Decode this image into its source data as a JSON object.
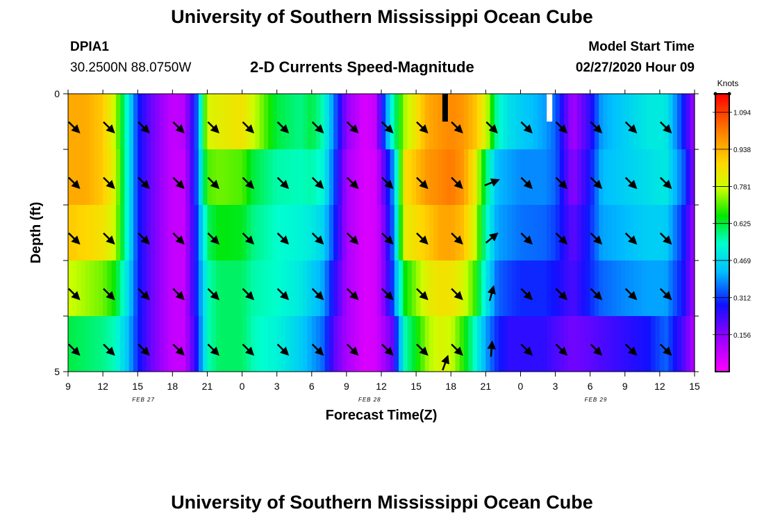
{
  "header": {
    "title": "University of Southern Mississippi Ocean Cube",
    "station": "DPIA1",
    "coords": "30.2500N 88.0750W",
    "subtitle": "2-D Currents Speed-Magnitude",
    "model_start_label": "Model Start Time",
    "model_start_value": "02/27/2020 Hour 09"
  },
  "footer": {
    "title": "University of Southern Mississippi Ocean Cube"
  },
  "chart_data": {
    "type": "heatmap",
    "xlabel": "Forecast Time(Z)",
    "ylabel": "Depth (ft)",
    "ylim": [
      0,
      5
    ],
    "y_ticks": [
      "0",
      "5"
    ],
    "x_ticks": [
      "9",
      "12",
      "15",
      "18",
      "21",
      "0",
      "3",
      "6",
      "9",
      "12",
      "15",
      "18",
      "21",
      "0",
      "3",
      "6",
      "9",
      "12",
      "15"
    ],
    "x_range_hours": [
      0,
      54
    ],
    "date_labels": [
      {
        "label": "FEB 27",
        "hour": 6.5
      },
      {
        "label": "FEB 28",
        "hour": 26
      },
      {
        "label": "FEB 29",
        "hour": 45.5
      }
    ],
    "colorbar": {
      "unit": "Knots",
      "min": 0.0,
      "max": 1.172,
      "ticks": [
        "1.094",
        "0.938",
        "0.781",
        "0.625",
        "0.469",
        "0.312",
        "0.156"
      ],
      "tick_values": [
        1.094,
        0.938,
        0.781,
        0.625,
        0.469,
        0.312,
        0.156
      ]
    },
    "depth_layers": 5,
    "profiles": [
      {
        "h": 0,
        "v": [
          0.95,
          0.95,
          0.9,
          0.78,
          0.62
        ]
      },
      {
        "h": 1.5,
        "v": [
          0.95,
          0.95,
          0.88,
          0.75,
          0.6
        ]
      },
      {
        "h": 3,
        "v": [
          0.9,
          0.9,
          0.85,
          0.72,
          0.58
        ]
      },
      {
        "h": 4,
        "v": [
          0.78,
          0.8,
          0.78,
          0.66,
          0.55
        ]
      },
      {
        "h": 5,
        "v": [
          0.55,
          0.55,
          0.55,
          0.5,
          0.45
        ]
      },
      {
        "h": 6,
        "v": [
          0.3,
          0.3,
          0.3,
          0.3,
          0.3
        ]
      },
      {
        "h": 7,
        "v": [
          0.2,
          0.2,
          0.2,
          0.2,
          0.2
        ]
      },
      {
        "h": 9,
        "v": [
          0.08,
          0.08,
          0.08,
          0.08,
          0.08
        ]
      },
      {
        "h": 10,
        "v": [
          0.1,
          0.08,
          0.08,
          0.08,
          0.08
        ]
      },
      {
        "h": 11,
        "v": [
          0.3,
          0.3,
          0.28,
          0.28,
          0.25
        ]
      },
      {
        "h": 12,
        "v": [
          0.8,
          0.7,
          0.6,
          0.55,
          0.55
        ]
      },
      {
        "h": 13,
        "v": [
          0.82,
          0.72,
          0.65,
          0.6,
          0.6
        ]
      },
      {
        "h": 15,
        "v": [
          0.85,
          0.7,
          0.64,
          0.6,
          0.6
        ]
      },
      {
        "h": 16,
        "v": [
          0.78,
          0.62,
          0.58,
          0.56,
          0.55
        ]
      },
      {
        "h": 18,
        "v": [
          0.62,
          0.56,
          0.54,
          0.54,
          0.52
        ]
      },
      {
        "h": 20,
        "v": [
          0.58,
          0.55,
          0.52,
          0.5,
          0.45
        ]
      },
      {
        "h": 21,
        "v": [
          0.62,
          0.56,
          0.5,
          0.45,
          0.4
        ]
      },
      {
        "h": 22,
        "v": [
          0.55,
          0.52,
          0.46,
          0.4,
          0.35
        ]
      },
      {
        "h": 23,
        "v": [
          0.35,
          0.32,
          0.3,
          0.25,
          0.2
        ]
      },
      {
        "h": 24,
        "v": [
          0.15,
          0.12,
          0.12,
          0.12,
          0.12
        ]
      },
      {
        "h": 25.5,
        "v": [
          0.05,
          0.05,
          0.05,
          0.05,
          0.05
        ]
      },
      {
        "h": 26.5,
        "v": [
          0.08,
          0.06,
          0.06,
          0.06,
          0.06
        ]
      },
      {
        "h": 27,
        "v": [
          0.25,
          0.15,
          0.12,
          0.12,
          0.1
        ]
      },
      {
        "h": 28,
        "v": [
          0.55,
          0.38,
          0.35,
          0.32,
          0.2
        ]
      },
      {
        "h": 29,
        "v": [
          0.75,
          0.85,
          0.82,
          0.65,
          0.55
        ]
      },
      {
        "h": 31,
        "v": [
          0.95,
          0.98,
          0.9,
          0.82,
          0.75
        ]
      },
      {
        "h": 32,
        "v": [
          0.98,
          1.0,
          0.95,
          0.85,
          0.8
        ]
      },
      {
        "h": 33,
        "v": [
          1.0,
          1.02,
          0.96,
          0.85,
          0.78
        ]
      },
      {
        "h": 34,
        "v": [
          0.98,
          0.98,
          0.92,
          0.8,
          0.68
        ]
      },
      {
        "h": 35,
        "v": [
          0.92,
          0.85,
          0.8,
          0.7,
          0.55
        ]
      },
      {
        "h": 36,
        "v": [
          0.8,
          0.6,
          0.55,
          0.5,
          0.4
        ]
      },
      {
        "h": 37,
        "v": [
          0.55,
          0.42,
          0.4,
          0.35,
          0.3
        ]
      },
      {
        "h": 38,
        "v": [
          0.48,
          0.4,
          0.38,
          0.32,
          0.25
        ]
      },
      {
        "h": 39,
        "v": [
          0.45,
          0.38,
          0.36,
          0.3,
          0.25
        ]
      },
      {
        "h": 41,
        "v": [
          0.4,
          0.38,
          0.35,
          0.3,
          0.25
        ]
      },
      {
        "h": 42,
        "v": [
          0.35,
          0.35,
          0.32,
          0.28,
          0.22
        ]
      },
      {
        "h": 43.5,
        "v": [
          0.12,
          0.15,
          0.2,
          0.22,
          0.18
        ]
      },
      {
        "h": 45,
        "v": [
          0.25,
          0.28,
          0.3,
          0.3,
          0.2
        ]
      },
      {
        "h": 46,
        "v": [
          0.4,
          0.42,
          0.4,
          0.35,
          0.22
        ]
      },
      {
        "h": 48,
        "v": [
          0.45,
          0.45,
          0.42,
          0.38,
          0.25
        ]
      },
      {
        "h": 50,
        "v": [
          0.5,
          0.48,
          0.45,
          0.4,
          0.28
        ]
      },
      {
        "h": 51.5,
        "v": [
          0.5,
          0.5,
          0.45,
          0.4,
          0.35
        ]
      },
      {
        "h": 53,
        "v": [
          0.3,
          0.35,
          0.3,
          0.28,
          0.22
        ]
      },
      {
        "h": 54,
        "v": [
          0.12,
          0.15,
          0.12,
          0.12,
          0.1
        ]
      }
    ],
    "vector_columns_hours": [
      0.5,
      3.5,
      6.5,
      9.5,
      12.5,
      15.5,
      18.5,
      21.5,
      24.5,
      27.5,
      30.5,
      33.5,
      36.5,
      39.5,
      42.5,
      45.5,
      48.5,
      51.5
    ],
    "vector_rows_depth": [
      0.6,
      1.6,
      2.6,
      3.6,
      4.6
    ],
    "vector_angles_deg": [
      [
        45,
        45,
        45,
        45,
        45,
        45,
        45,
        45,
        45,
        45,
        45,
        45,
        45,
        45,
        45,
        45,
        45,
        45
      ],
      [
        45,
        45,
        45,
        45,
        45,
        45,
        45,
        45,
        45,
        45,
        45,
        45,
        -22,
        45,
        45,
        45,
        45,
        45
      ],
      [
        45,
        45,
        45,
        45,
        45,
        45,
        45,
        45,
        45,
        45,
        45,
        45,
        -40,
        45,
        45,
        45,
        45,
        45
      ],
      [
        45,
        45,
        45,
        45,
        45,
        45,
        45,
        45,
        45,
        45,
        45,
        45,
        -75,
        45,
        45,
        45,
        45,
        45
      ],
      [
        45,
        45,
        45,
        45,
        45,
        45,
        45,
        45,
        45,
        45,
        45,
        45,
        -85,
        45,
        45,
        45,
        45,
        45
      ]
    ],
    "vector_extra": {
      "hour": 32.5,
      "depth": 5.0,
      "angle_deg": -70
    },
    "surface_markers": [
      {
        "hour": 32.5,
        "color": "#000000"
      },
      {
        "hour": 41.5,
        "color": "#ffffff"
      }
    ]
  }
}
